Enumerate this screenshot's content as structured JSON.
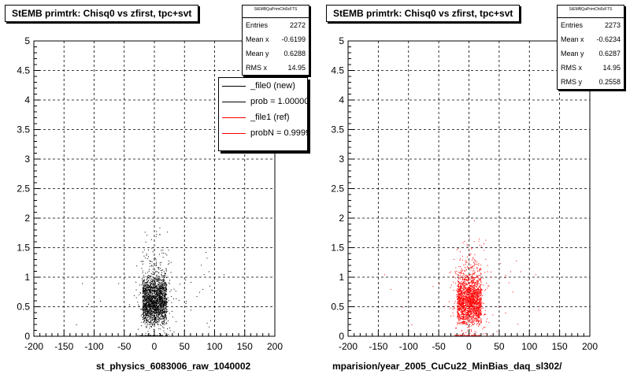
{
  "chart_data": [
    {
      "type": "scatter",
      "title": "StEMB primtrk: Chisq0 vs zfirst, tpc+svt",
      "xlabel": "",
      "ylabel": "",
      "xlim": [
        -200,
        200
      ],
      "ylim": [
        0,
        5
      ],
      "x_ticks": [
        "-200",
        "-150",
        "-100",
        "-50",
        "0",
        "50",
        "100",
        "150",
        "200"
      ],
      "y_ticks": [
        "0",
        "0.5",
        "1",
        "1.5",
        "2",
        "2.5",
        "3",
        "3.5",
        "4",
        "4.5",
        "5"
      ],
      "grid": true,
      "series": [
        {
          "color": "#000000",
          "dense_region": {
            "x": [
              -20,
              20
            ],
            "y": [
              0.2,
              1.1
            ]
          },
          "sparse_region": {
            "x": [
              -40,
              100
            ],
            "y": [
              0,
              2.0
            ]
          },
          "sample_outliers": [
            [
              -130,
              0.2
            ],
            [
              -110,
              0.55
            ],
            [
              -90,
              0.6
            ],
            [
              -60,
              0.9
            ],
            [
              60,
              0.45
            ],
            [
              80,
              0.8
            ],
            [
              90,
              1.1
            ],
            [
              115,
              1.05
            ],
            [
              -120,
              0.9
            ]
          ]
        }
      ],
      "stats": {
        "header": "StEMBQaPrimChi0zFTS",
        "rows": [
          {
            "label": "Entries",
            "value": "2272"
          },
          {
            "label": "Mean x",
            "value": "-0.6199"
          },
          {
            "label": "Mean y",
            "value": "0.6288"
          },
          {
            "label": "RMS x",
            "value": "14.95"
          }
        ]
      },
      "legend": [
        {
          "label": "_file0 (new)",
          "color": "#000000"
        },
        {
          "label": "prob = 1.000000",
          "color": "#000000"
        },
        {
          "label": "_file1 (ref)",
          "color": "#ff0000"
        },
        {
          "label": "probN = 0.999933",
          "color": "#ff0000"
        }
      ],
      "caption": "st_physics_6083006_raw_1040002"
    },
    {
      "type": "scatter",
      "title": "StEMB primtrk: Chisq0 vs zfirst, tpc+svt",
      "xlabel": "",
      "ylabel": "",
      "xlim": [
        -200,
        200
      ],
      "ylim": [
        0,
        5
      ],
      "x_ticks": [
        "-200",
        "-150",
        "-100",
        "-50",
        "0",
        "50",
        "100",
        "150",
        "200"
      ],
      "y_ticks": [
        "0",
        "0.5",
        "1",
        "1.5",
        "2",
        "2.5",
        "3",
        "3.5",
        "4",
        "4.5",
        "5"
      ],
      "grid": true,
      "series": [
        {
          "color": "#ff0000",
          "dense_region": {
            "x": [
              -20,
              20
            ],
            "y": [
              0.2,
              1.1
            ]
          },
          "sparse_region": {
            "x": [
              -40,
              100
            ],
            "y": [
              0,
              2.0
            ]
          },
          "sample_outliers": [
            [
              -130,
              0.8
            ],
            [
              -110,
              0.5
            ],
            [
              -95,
              0.2
            ],
            [
              -60,
              0.85
            ],
            [
              60,
              0.4
            ],
            [
              85,
              1.1
            ],
            [
              110,
              1.05
            ],
            [
              115,
              0.45
            ],
            [
              -140,
              1.05
            ]
          ]
        }
      ],
      "stats": {
        "header": "StEMBQaPrimChi0zFTS",
        "rows": [
          {
            "label": "Entries",
            "value": "2273"
          },
          {
            "label": "Mean x",
            "value": "-0.6234"
          },
          {
            "label": "Mean y",
            "value": "0.6287"
          },
          {
            "label": "RMS x",
            "value": "14.95"
          },
          {
            "label": "RMS y",
            "value": "0.2558"
          }
        ]
      },
      "caption": "mparision/year_2005_CuCu22_MinBias_daq_sl302/"
    }
  ]
}
